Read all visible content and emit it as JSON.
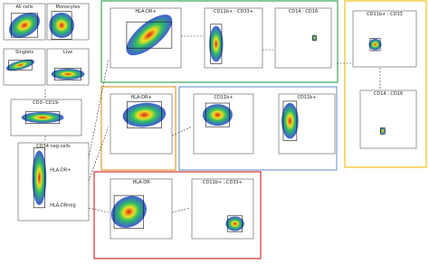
{
  "panels": [
    {
      "title": "All cells"
    },
    {
      "title": "Monocytes"
    },
    {
      "title": "Singlets"
    },
    {
      "title": "Live"
    },
    {
      "title": "CD3- CD19-"
    },
    {
      "title": "CD34 neg cells",
      "gates": [
        "HLA-DR+",
        "HLA-DRneg"
      ]
    },
    {
      "title": "HLA-DR+"
    },
    {
      "title": "CD11b+ : CD33+"
    },
    {
      "title": "CD14 : CD16"
    },
    {
      "title": "HLA-DR+"
    },
    {
      "title": "CD11b+"
    },
    {
      "title": "CD11b+"
    },
    {
      "title": "HLA-DR"
    },
    {
      "title": "CD11b+ : CD33+"
    },
    {
      "title": "CD11b+ : CD33"
    },
    {
      "title": "CD14 : CD16"
    }
  ]
}
